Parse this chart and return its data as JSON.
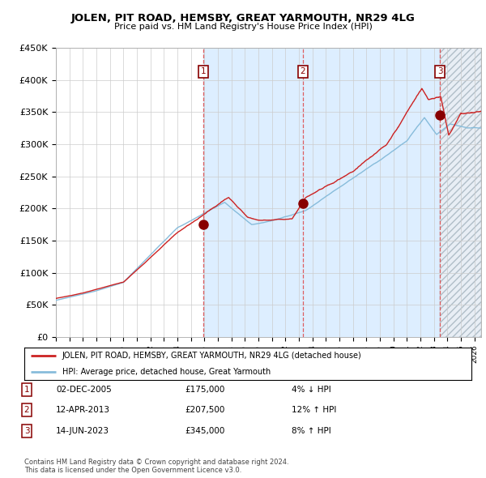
{
  "title": "JOLEN, PIT ROAD, HEMSBY, GREAT YARMOUTH, NR29 4LG",
  "subtitle": "Price paid vs. HM Land Registry's House Price Index (HPI)",
  "ylim": [
    0,
    450000
  ],
  "yticks": [
    0,
    50000,
    100000,
    150000,
    200000,
    250000,
    300000,
    350000,
    400000,
    450000
  ],
  "ytick_labels": [
    "£0",
    "£50K",
    "£100K",
    "£150K",
    "£200K",
    "£250K",
    "£300K",
    "£350K",
    "£400K",
    "£450K"
  ],
  "xlim_start": 1995.0,
  "xlim_end": 2026.5,
  "hpi_color": "#87bcdb",
  "price_color": "#cc2222",
  "sale_marker_color": "#880000",
  "background_color": "#ffffff",
  "grid_color": "#cccccc",
  "shade_color": "#ddeeff",
  "sale1_x": 2005.92,
  "sale1_y": 175000,
  "sale2_x": 2013.28,
  "sale2_y": 207500,
  "sale3_x": 2023.45,
  "sale3_y": 345000,
  "sale1_date": "02-DEC-2005",
  "sale1_price": "£175,000",
  "sale1_hpi": "4% ↓ HPI",
  "sale2_date": "12-APR-2013",
  "sale2_price": "£207,500",
  "sale2_hpi": "12% ↑ HPI",
  "sale3_date": "14-JUN-2023",
  "sale3_price": "£345,000",
  "sale3_hpi": "8% ↑ HPI",
  "legend_line1": "JOLEN, PIT ROAD, HEMSBY, GREAT YARMOUTH, NR29 4LG (detached house)",
  "legend_line2": "HPI: Average price, detached house, Great Yarmouth",
  "footnote": "Contains HM Land Registry data © Crown copyright and database right 2024.\nThis data is licensed under the Open Government Licence v3.0."
}
